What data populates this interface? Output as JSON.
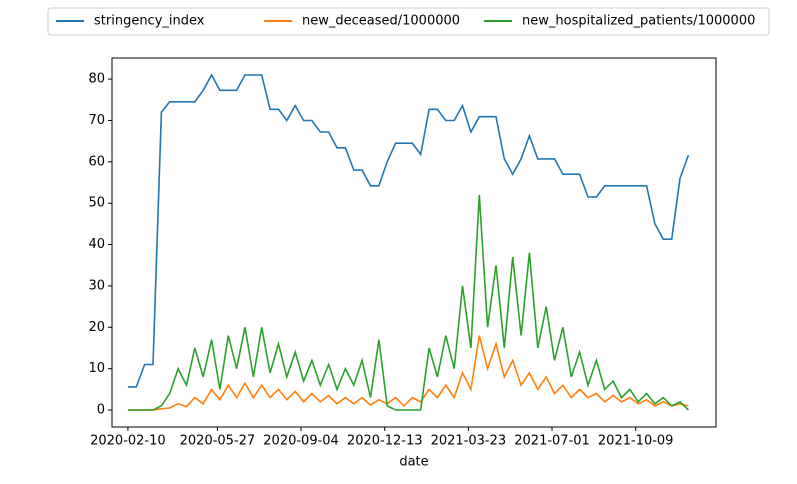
{
  "chart_data": {
    "type": "line",
    "x_label": "date",
    "x": [
      "2020-02-10",
      "2020-02-20",
      "2020-03-01",
      "2020-03-11",
      "2020-03-21",
      "2020-03-31",
      "2020-04-10",
      "2020-04-20",
      "2020-04-30",
      "2020-05-10",
      "2020-05-20",
      "2020-05-30",
      "2020-06-09",
      "2020-06-19",
      "2020-06-29",
      "2020-07-09",
      "2020-07-19",
      "2020-07-29",
      "2020-08-08",
      "2020-08-18",
      "2020-08-28",
      "2020-09-07",
      "2020-09-17",
      "2020-09-27",
      "2020-10-07",
      "2020-10-17",
      "2020-10-27",
      "2020-11-06",
      "2020-11-16",
      "2020-11-26",
      "2020-12-06",
      "2020-12-16",
      "2020-12-26",
      "2021-01-05",
      "2021-01-15",
      "2021-01-25",
      "2021-02-04",
      "2021-02-14",
      "2021-02-24",
      "2021-03-06",
      "2021-03-16",
      "2021-03-26",
      "2021-04-05",
      "2021-04-15",
      "2021-04-25",
      "2021-05-05",
      "2021-05-15",
      "2021-05-25",
      "2021-06-04",
      "2021-06-14",
      "2021-06-24",
      "2021-07-04",
      "2021-07-14",
      "2021-07-24",
      "2021-08-03",
      "2021-08-13",
      "2021-08-23",
      "2021-09-02",
      "2021-09-12",
      "2021-09-22",
      "2021-10-02",
      "2021-10-12",
      "2021-10-22",
      "2021-11-01",
      "2021-11-11",
      "2021-11-21",
      "2021-12-01",
      "2021-12-11"
    ],
    "series": [
      {
        "name": "stringency_index",
        "color": "#1f77b4",
        "values": [
          5.6,
          5.6,
          11,
          11,
          72,
          74.5,
          74.5,
          74.5,
          74.5,
          77.3,
          81,
          77.3,
          77.3,
          77.3,
          81,
          81,
          81,
          72.7,
          72.7,
          70,
          73.6,
          70,
          70,
          67.2,
          67.2,
          63.4,
          63.4,
          58,
          58,
          54.2,
          54.2,
          60,
          64.5,
          64.5,
          64.5,
          61.8,
          72.7,
          72.7,
          70,
          70,
          73.6,
          67.2,
          70.9,
          70.9,
          70.9,
          60.7,
          57,
          60.7,
          66.3,
          60.7,
          60.7,
          60.7,
          57,
          57,
          57,
          51.5,
          51.5,
          54.2,
          54.2,
          54.2,
          54.2,
          54.2,
          54.2,
          45,
          41.3,
          41.3,
          56,
          61.6
        ]
      },
      {
        "name": "new_deceased/1000000",
        "color": "#ff7f0e",
        "values": [
          0,
          0,
          0,
          0,
          0.3,
          0.5,
          1.5,
          0.8,
          3,
          1.5,
          5,
          2.5,
          6,
          3,
          6.5,
          3,
          6,
          3,
          5,
          2.5,
          4.5,
          2,
          4,
          2,
          3.5,
          1.5,
          3,
          1.5,
          3,
          1.2,
          2.5,
          1.5,
          3,
          1,
          3,
          2,
          5,
          3,
          6,
          3,
          9,
          5,
          18,
          10,
          16,
          8,
          12,
          6,
          9,
          5,
          8,
          4,
          6,
          3,
          5,
          3,
          4,
          2,
          3.5,
          2,
          3,
          1.5,
          2.5,
          1,
          2,
          1,
          1.5,
          1
        ]
      },
      {
        "name": "new_hospitalized_patients/1000000",
        "color": "#2ca02c",
        "values": [
          0,
          0,
          0,
          0,
          1,
          4,
          10,
          6,
          15,
          8,
          17,
          5,
          18,
          10,
          20,
          8,
          20,
          9,
          16,
          8,
          14,
          7,
          12,
          6,
          11,
          5,
          10,
          6,
          12,
          3,
          17,
          1,
          0,
          0,
          0,
          0,
          15,
          8,
          18,
          10,
          30,
          15,
          52,
          20,
          35,
          15,
          37,
          18,
          38,
          15,
          25,
          12,
          20,
          8,
          14,
          6,
          12,
          5,
          7,
          3,
          5,
          2,
          4,
          1.5,
          3,
          1,
          2,
          0
        ]
      }
    ],
    "xlim": [
      "2020-01-22",
      "2022-01-13"
    ],
    "xticks": [
      "2020-02-10",
      "2020-05-27",
      "2020-09-04",
      "2020-12-13",
      "2021-03-23",
      "2021-07-01",
      "2021-10-09"
    ],
    "ylim": [
      -4.1,
      85.1
    ],
    "yticks": [
      0,
      10,
      20,
      30,
      40,
      50,
      60,
      70,
      80
    ],
    "legend": "top"
  }
}
